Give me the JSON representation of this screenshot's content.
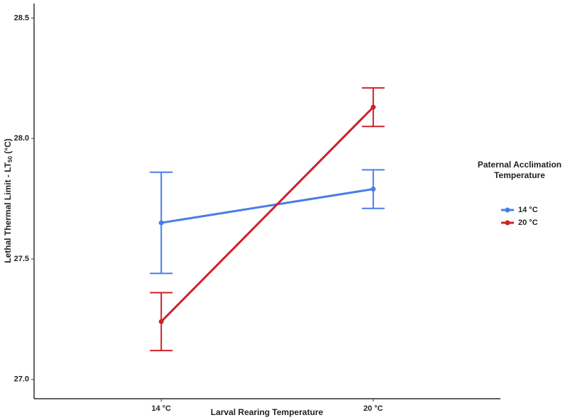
{
  "chart_data": {
    "type": "line",
    "x_label": "Larval Rearing Temperature",
    "y_label": [
      "Lethal Thermal Limit - LT",
      "50",
      " (°C)"
    ],
    "categories": [
      "14 °C",
      "20 °C"
    ],
    "legend_title": [
      "Paternal Acclimation",
      "Temperature"
    ],
    "legend_position": "right",
    "series": [
      {
        "name": "14 °C",
        "color": "#4a7de8",
        "values": [
          27.65,
          27.79
        ],
        "errors": [
          0.21,
          0.08
        ]
      },
      {
        "name": "20 °C",
        "color": "#cc2229",
        "values": [
          27.24,
          28.13
        ],
        "errors": [
          0.12,
          0.08
        ]
      }
    ],
    "ylim": [
      26.92,
      28.56
    ],
    "yticks": [
      {
        "value": 27,
        "label": "27.0"
      },
      27.5,
      {
        "value": 28,
        "label": "28.0"
      },
      28.5
    ]
  }
}
